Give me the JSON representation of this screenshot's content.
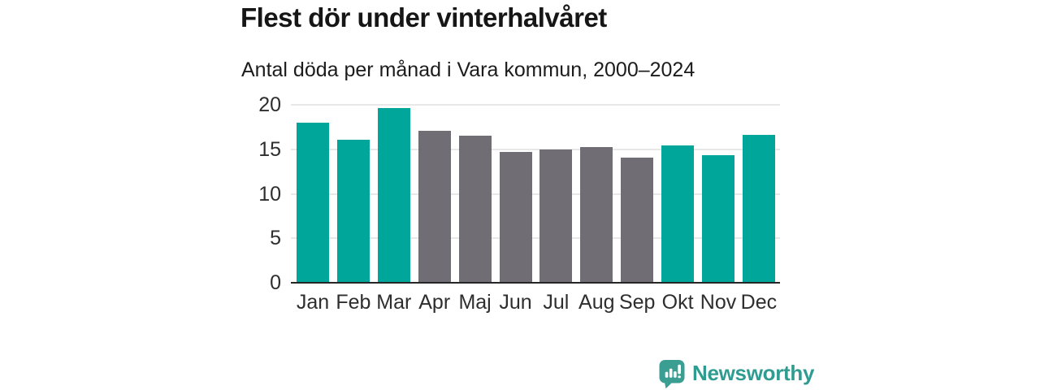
{
  "chart": {
    "title": "Flest dör under vinterhalvåret",
    "subtitle": "Antal döda per månad i Vara kommun, 2000–2024"
  },
  "chart_data": {
    "type": "bar",
    "title": "Flest dör under vinterhalvåret",
    "subtitle": "Antal döda per månad i Vara kommun, 2000–2024",
    "categories": [
      "Jan",
      "Feb",
      "Mar",
      "Apr",
      "Maj",
      "Jun",
      "Jul",
      "Aug",
      "Sep",
      "Okt",
      "Nov",
      "Dec"
    ],
    "values": [
      18.0,
      16.1,
      19.6,
      17.1,
      16.5,
      14.7,
      15.0,
      15.3,
      14.1,
      15.4,
      14.3,
      16.6
    ],
    "bar_colors": [
      "#00a69a",
      "#00a69a",
      "#00a69a",
      "#706e74",
      "#706e74",
      "#706e74",
      "#706e74",
      "#706e74",
      "#706e74",
      "#00a69a",
      "#00a69a",
      "#00a69a"
    ],
    "highlight_color": "#00a69a",
    "muted_color": "#706e74",
    "xlabel": "",
    "ylabel": "",
    "ylim": [
      0,
      20
    ],
    "yticks": [
      0,
      5,
      10,
      15,
      20
    ],
    "grid": true,
    "legend": "none",
    "gridline_color": "#e8e8e8",
    "axis_color": "#262626"
  },
  "footer": {
    "brand": "Newsworthy",
    "brand_color": "#2f9c91"
  }
}
